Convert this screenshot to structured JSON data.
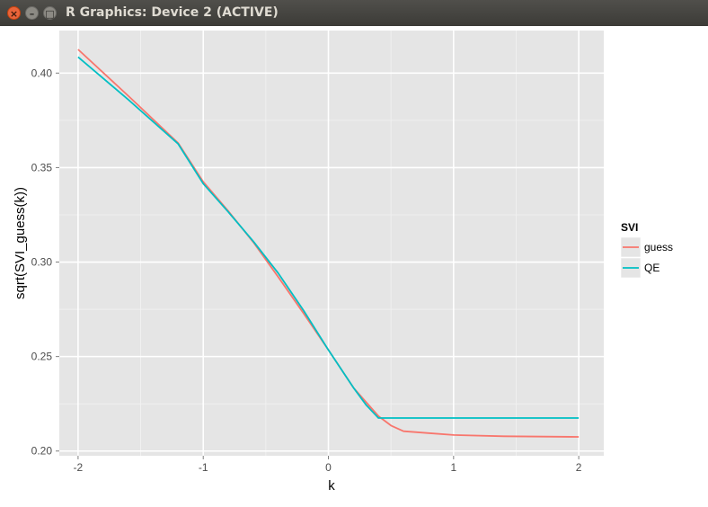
{
  "window": {
    "title": "R Graphics: Device 2 (ACTIVE)",
    "buttons": {
      "close": "×",
      "minimize": "–",
      "maximize": "□"
    }
  },
  "colors": {
    "panel_bg": "#e5e5e5",
    "grid_major": "#ffffff",
    "grid_minor": "#f2f2f2",
    "axis_text": "#4d4d4d",
    "guess": "#f8766d",
    "qe": "#00bfc4"
  },
  "chart_data": {
    "type": "line",
    "title": "",
    "xlabel": "k",
    "ylabel": "sqrt(SVI_guess(k))",
    "xlim": [
      -2.15,
      2.2
    ],
    "ylim": [
      0.1975,
      0.4225
    ],
    "x_ticks": [
      -2,
      -1,
      0,
      1,
      2
    ],
    "x_tick_labels": [
      "-2",
      "-1",
      "0",
      "1",
      "2"
    ],
    "y_ticks": [
      0.2,
      0.25,
      0.3,
      0.35,
      0.4
    ],
    "y_tick_labels": [
      "0.20",
      "0.25",
      "0.30",
      "0.35",
      "0.40"
    ],
    "grid": true,
    "legend": {
      "title": "SVI",
      "position": "right"
    },
    "series": [
      {
        "name": "guess",
        "color": "#f8766d",
        "x": [
          -2,
          -1.6,
          -1.2,
          -1,
          -0.8,
          -0.6,
          -0.4,
          -0.2,
          0,
          0.2,
          0.3,
          0.4,
          0.5,
          0.6,
          0.8,
          1,
          1.4,
          2
        ],
        "y": [
          0.4125,
          0.388,
          0.363,
          0.3425,
          0.327,
          0.3105,
          0.292,
          0.273,
          0.2535,
          0.2335,
          0.226,
          0.2185,
          0.2135,
          0.2105,
          0.2095,
          0.2085,
          0.2078,
          0.2075
        ]
      },
      {
        "name": "QE",
        "color": "#00bfc4",
        "x": [
          -2,
          -1.6,
          -1.2,
          -1,
          -0.8,
          -0.6,
          -0.4,
          -0.2,
          0,
          0.2,
          0.3,
          0.4,
          2
        ],
        "y": [
          0.4085,
          0.386,
          0.3625,
          0.3415,
          0.3265,
          0.311,
          0.294,
          0.2745,
          0.2535,
          0.2335,
          0.2245,
          0.2175,
          0.2175
        ]
      }
    ]
  }
}
